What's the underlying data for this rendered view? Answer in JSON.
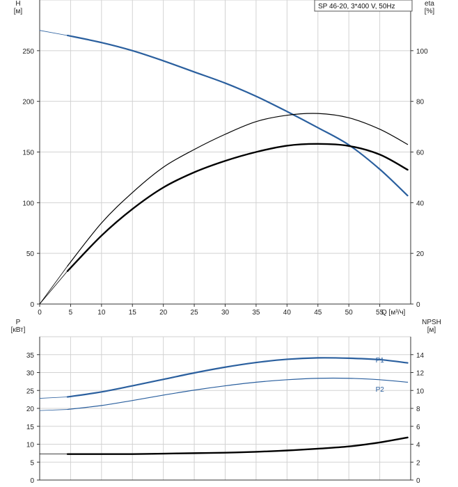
{
  "legend_title": "SP 46-20, 3*400 V, 50Hz",
  "colors": {
    "blue": "#2a5f9e",
    "black": "#000000",
    "grid": "#d2d2d2"
  },
  "chart_data": [
    {
      "type": "line",
      "name": "upper",
      "left_axis_label": [
        "H",
        "[м]"
      ],
      "right_axis_label": [
        "eta",
        "[%]"
      ],
      "xlabel": "Q [м³/ч]",
      "xlim": [
        0,
        60
      ],
      "xticks": [
        0,
        5,
        10,
        15,
        20,
        25,
        30,
        35,
        40,
        45,
        50,
        55
      ],
      "ylim_left": [
        0,
        300
      ],
      "yticks_left": [
        0,
        50,
        100,
        150,
        200,
        250
      ],
      "ylim_right": [
        0,
        120
      ],
      "yticks_right": [
        0,
        20,
        40,
        60,
        80,
        100
      ],
      "grid": true,
      "series": [
        {
          "id": "head",
          "axis": "left",
          "color": "#2a5f9e",
          "width": 2.2,
          "x": [
            4.5,
            10,
            15,
            20,
            25,
            30,
            35,
            40,
            45,
            50,
            55,
            59.5
          ],
          "y": [
            265,
            258,
            250,
            240,
            229,
            218,
            205,
            190,
            174,
            157,
            133,
            107
          ],
          "extension": {
            "x": [
              0,
              4.5
            ],
            "y": [
              270,
              265
            ]
          }
        },
        {
          "id": "eta-thin",
          "axis": "right",
          "color": "#000000",
          "width": 1.2,
          "x": [
            4.5,
            10,
            15,
            20,
            25,
            30,
            35,
            40,
            45,
            50,
            55,
            59.5
          ],
          "y": [
            15,
            32,
            44,
            54,
            61,
            67,
            72,
            74.5,
            75.2,
            73.5,
            69,
            63
          ],
          "extension": {
            "x": [
              0,
              4.5
            ],
            "y": [
              0,
              15
            ]
          }
        },
        {
          "id": "eta-thick",
          "axis": "right",
          "color": "#000000",
          "width": 2.4,
          "x": [
            4.5,
            10,
            15,
            20,
            25,
            30,
            35,
            40,
            45,
            50,
            55,
            59.5
          ],
          "y": [
            13,
            27,
            37.5,
            46,
            52,
            56.5,
            60,
            62.5,
            63.2,
            62.4,
            59,
            53
          ],
          "extension": {
            "x": [
              0,
              4.5
            ],
            "y": [
              0,
              13
            ]
          }
        }
      ]
    },
    {
      "type": "line",
      "name": "lower",
      "left_axis_label": [
        "P",
        "[кВт]"
      ],
      "right_axis_label": [
        "NPSH",
        "[м]"
      ],
      "xlim": [
        0,
        60
      ],
      "ylim_left": [
        0,
        40
      ],
      "yticks_left": [
        0,
        5,
        10,
        15,
        20,
        25,
        30,
        35
      ],
      "ylim_right": [
        0,
        16
      ],
      "yticks_right": [
        0,
        2,
        4,
        6,
        8,
        10,
        12,
        14
      ],
      "grid": true,
      "series": [
        {
          "id": "P1",
          "name": "P1",
          "axis": "left",
          "color": "#2a5f9e",
          "width": 2.2,
          "x": [
            4.5,
            10,
            15,
            20,
            25,
            30,
            35,
            40,
            45,
            50,
            55,
            59.5
          ],
          "y": [
            23.2,
            24.6,
            26.3,
            28.1,
            29.9,
            31.5,
            32.8,
            33.7,
            34.1,
            34.0,
            33.6,
            32.7
          ],
          "extension": {
            "x": [
              0,
              4.5
            ],
            "y": [
              22.8,
              23.2
            ]
          }
        },
        {
          "id": "P2",
          "name": "P2",
          "axis": "left",
          "color": "#2a5f9e",
          "width": 1.2,
          "x": [
            4.5,
            10,
            15,
            20,
            25,
            30,
            35,
            40,
            45,
            50,
            55,
            59.5
          ],
          "y": [
            19.7,
            20.8,
            22.2,
            23.7,
            25.1,
            26.3,
            27.3,
            28.0,
            28.4,
            28.4,
            28.0,
            27.3
          ],
          "extension": {
            "x": [
              0,
              4.5
            ],
            "y": [
              19.4,
              19.7
            ]
          }
        },
        {
          "id": "NPSH",
          "axis": "right",
          "color": "#000000",
          "width": 2.4,
          "x": [
            4.5,
            10,
            15,
            20,
            25,
            30,
            35,
            40,
            45,
            50,
            55,
            59.5
          ],
          "y": [
            2.9,
            2.9,
            2.9,
            2.95,
            3.0,
            3.05,
            3.15,
            3.3,
            3.5,
            3.75,
            4.2,
            4.75
          ],
          "extension": {
            "x": [
              0,
              4.5
            ],
            "y": [
              2.9,
              2.9
            ]
          }
        }
      ]
    }
  ]
}
